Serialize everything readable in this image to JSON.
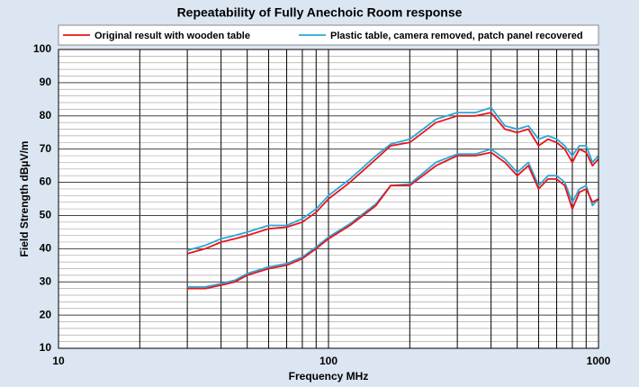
{
  "chart_data": {
    "type": "line",
    "title": "Repeatability of Fully Anechoic Room response",
    "xlabel": "Frequency MHz",
    "ylabel": "Field Strength dBµV/m",
    "xscale": "log",
    "x": [
      30,
      35,
      40,
      45,
      50,
      60,
      70,
      80,
      90,
      100,
      120,
      150,
      170,
      200,
      250,
      300,
      350,
      400,
      450,
      500,
      550,
      600,
      650,
      700,
      750,
      800,
      850,
      900,
      950,
      1000
    ],
    "series": [
      {
        "name": "Plastic table, camera removed, patch panel recovered",
        "color": "#2aa7d8",
        "values": [
          39.5,
          41,
          43,
          44,
          45,
          47,
          47,
          49,
          52,
          56,
          61,
          68,
          71.5,
          73,
          79,
          81,
          81,
          82.5,
          77,
          76,
          77,
          73,
          74,
          73,
          71,
          68,
          71,
          71,
          66,
          68
        ]
      },
      {
        "color": "#2aa7d8",
        "values": [
          28.5,
          28.5,
          29.5,
          30.5,
          32.5,
          34.5,
          35.5,
          37.5,
          40.5,
          43.5,
          47.5,
          53.5,
          59,
          59.5,
          66,
          68.5,
          68.5,
          70,
          67,
          63,
          66,
          59,
          62,
          62,
          60,
          54,
          58,
          59,
          53,
          55
        ]
      },
      {
        "name": "Original result with wooden table",
        "color": "#e8141a",
        "values": [
          38.5,
          40,
          42,
          43,
          44,
          46,
          46.5,
          48,
          51,
          55,
          60,
          67,
          71,
          72,
          78,
          80,
          80,
          81,
          76,
          75,
          76,
          71,
          73,
          72,
          70,
          66,
          70,
          69,
          65,
          67
        ]
      },
      {
        "color": "#e8141a",
        "values": [
          28,
          28,
          29,
          30,
          32,
          34,
          35,
          37,
          40,
          43,
          47,
          53,
          59,
          59,
          65,
          68,
          68,
          69,
          66,
          62,
          65,
          58,
          61,
          61,
          59,
          52,
          57,
          58,
          54,
          55
        ]
      }
    ],
    "xlim": [
      10,
      1000
    ],
    "xticks": [
      10,
      100,
      1000
    ],
    "xminorticks": [
      20,
      30,
      40,
      50,
      60,
      70,
      80,
      90,
      200,
      300,
      400,
      500,
      600,
      700,
      800,
      900
    ],
    "ylim": [
      10,
      100
    ],
    "yticks": [
      10,
      20,
      30,
      40,
      50,
      60,
      70,
      80,
      90,
      100
    ],
    "yminorticks": [
      12,
      14,
      16,
      18,
      22,
      24,
      26,
      28,
      32,
      34,
      36,
      38,
      42,
      44,
      46,
      48,
      52,
      54,
      56,
      58,
      62,
      64,
      66,
      68,
      72,
      74,
      76,
      78,
      82,
      84,
      86,
      88,
      92,
      94,
      96,
      98,
      102,
      104
    ],
    "grid": true
  }
}
